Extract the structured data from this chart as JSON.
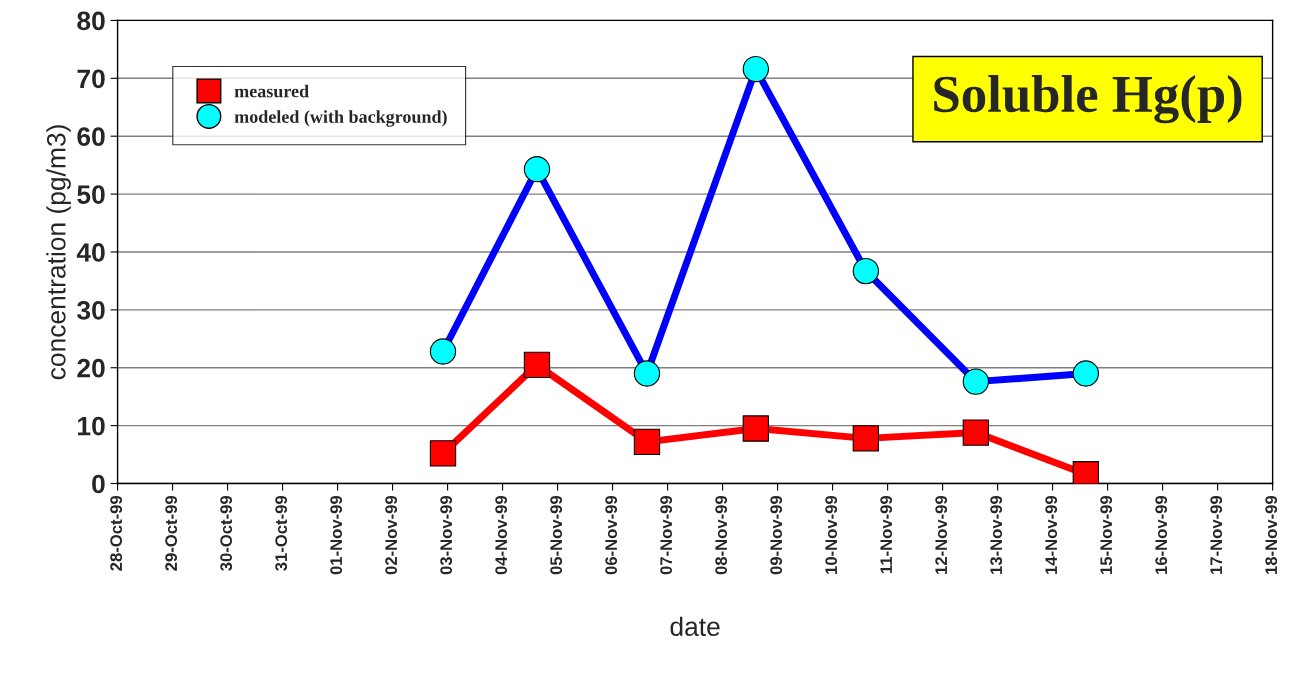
{
  "chart_data": {
    "type": "line",
    "title": "Soluble Hg(p)",
    "xlabel": "date",
    "ylabel": "concentration (pg/m3)",
    "x": [
      "1999-11-02T22:00",
      "1999-11-04T15:00",
      "1999-11-06T15:00",
      "1999-11-08T14:30",
      "1999-11-10T14:30",
      "1999-11-12T14:30",
      "1999-11-14T14:30"
    ],
    "series": [
      {
        "name": "measured",
        "color": "#ff0000",
        "marker": "square",
        "colors": [
          "#ff0000",
          "#ff0000",
          "#ff0000",
          "#ff0000",
          "#ff0000",
          "#ff0000",
          "#ff0000"
        ],
        "values": [
          5.2,
          20.5,
          7.2,
          9.5,
          7.8,
          8.8,
          1.6
        ]
      },
      {
        "name": "modeled (with background)",
        "color": "#0000ff",
        "marker": "circle",
        "colors": [
          "#00ffff",
          "#00ffff",
          "#00ffff",
          "#00ffff",
          "#00ffff",
          "#00ffff",
          "#00ffff"
        ],
        "values": [
          22.8,
          54.3,
          19.0,
          71.6,
          36.7,
          17.6,
          19.0
        ]
      }
    ],
    "xlim": [
      "1999-10-28",
      "1999-11-18"
    ],
    "xticks": [
      {
        "value": "1999-10-28",
        "label": "28-Oct-99"
      },
      {
        "value": "1999-10-29",
        "label": "29-Oct-99"
      },
      {
        "value": "1999-10-30",
        "label": "30-Oct-99"
      },
      {
        "value": "1999-10-31",
        "label": "31-Oct-99"
      },
      {
        "value": "1999-11-01",
        "label": "01-Nov-99"
      },
      {
        "value": "1999-11-02",
        "label": "02-Nov-99"
      },
      {
        "value": "1999-11-03",
        "label": "03-Nov-99"
      },
      {
        "value": "1999-11-04",
        "label": "04-Nov-99"
      },
      {
        "value": "1999-11-05",
        "label": "05-Nov-99"
      },
      {
        "value": "1999-11-06",
        "label": "06-Nov-99"
      },
      {
        "value": "1999-11-07",
        "label": "07-Nov-99"
      },
      {
        "value": "1999-11-08",
        "label": "08-Nov-99"
      },
      {
        "value": "1999-11-09",
        "label": "09-Nov-99"
      },
      {
        "value": "1999-11-10",
        "label": "10-Nov-99"
      },
      {
        "value": "1999-11-11",
        "label": "11-Nov-99"
      },
      {
        "value": "1999-11-12",
        "label": "12-Nov-99"
      },
      {
        "value": "1999-11-13",
        "label": "13-Nov-99"
      },
      {
        "value": "1999-11-14",
        "label": "14-Nov-99"
      },
      {
        "value": "1999-11-15",
        "label": "15-Nov-99"
      },
      {
        "value": "1999-11-16",
        "label": "16-Nov-99"
      },
      {
        "value": "1999-11-17",
        "label": "17-Nov-99"
      },
      {
        "value": "1999-11-18",
        "label": "18-Nov-99"
      }
    ],
    "ylim": [
      0,
      80
    ],
    "yticks": [
      0,
      10,
      20,
      30,
      40,
      50,
      60,
      70,
      80
    ],
    "grid": "y",
    "legend": "top left",
    "line_style": "solid"
  }
}
